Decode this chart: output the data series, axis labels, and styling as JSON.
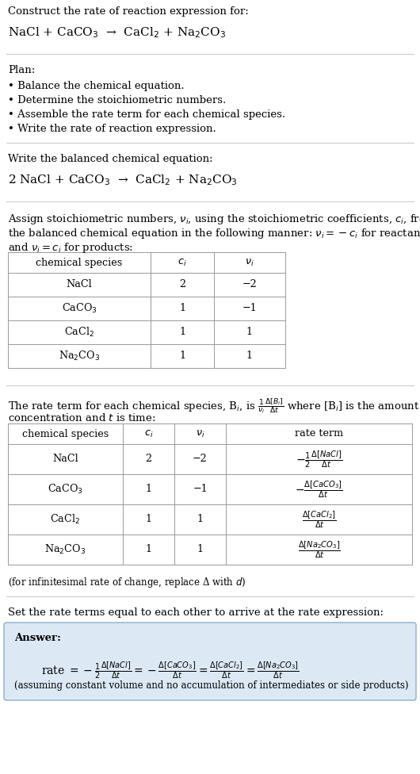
{
  "title_line1": "Construct the rate of reaction expression for:",
  "reaction_unbalanced": "NaCl + CaCO$_3$  →  CaCl$_2$ + Na$_2$CO$_3$",
  "plan_header": "Plan:",
  "plan_items": [
    "• Balance the chemical equation.",
    "• Determine the stoichiometric numbers.",
    "• Assemble the rate term for each chemical species.",
    "• Write the rate of reaction expression."
  ],
  "balanced_header": "Write the balanced chemical equation:",
  "reaction_balanced": "2 NaCl + CaCO$_3$  →  CaCl$_2$ + Na$_2$CO$_3$",
  "stoich_intro_1": "Assign stoichiometric numbers, $\\nu_i$, using the stoichiometric coefficients, $c_i$, from",
  "stoich_intro_2": "the balanced chemical equation in the following manner: $\\nu_i = -c_i$ for reactants",
  "stoich_intro_3": "and $\\nu_i = c_i$ for products:",
  "table1_headers": [
    "chemical species",
    "$c_i$",
    "$\\nu_i$"
  ],
  "table1_rows": [
    [
      "NaCl",
      "2",
      "−2"
    ],
    [
      "CaCO$_3$",
      "1",
      "−1"
    ],
    [
      "CaCl$_2$",
      "1",
      "1"
    ],
    [
      "Na$_2$CO$_3$",
      "1",
      "1"
    ]
  ],
  "rate_intro_1": "The rate term for each chemical species, B$_i$, is $\\frac{1}{\\nu_i}\\frac{\\Delta[B_i]}{\\Delta t}$ where [B$_i$] is the amount",
  "rate_intro_2": "concentration and $t$ is time:",
  "table2_headers": [
    "chemical species",
    "$c_i$",
    "$\\nu_i$",
    "rate term"
  ],
  "table2_rows": [
    [
      "NaCl",
      "2",
      "−2",
      "$-\\frac{1}{2}\\frac{\\Delta[NaCl]}{\\Delta t}$"
    ],
    [
      "CaCO$_3$",
      "1",
      "−1",
      "$-\\frac{\\Delta[CaCO_3]}{\\Delta t}$"
    ],
    [
      "CaCl$_2$",
      "1",
      "1",
      "$\\frac{\\Delta[CaCl_2]}{\\Delta t}$"
    ],
    [
      "Na$_2$CO$_3$",
      "1",
      "1",
      "$\\frac{\\Delta[Na_2CO_3]}{\\Delta t}$"
    ]
  ],
  "infinitesimal_note": "(for infinitesimal rate of change, replace Δ with $d$)",
  "set_equal_text": "Set the rate terms equal to each other to arrive at the rate expression:",
  "answer_label": "Answer:",
  "answer_eq": "rate $= -\\frac{1}{2}\\frac{\\Delta[NaCl]}{\\Delta t} = -\\frac{\\Delta[CaCO_3]}{\\Delta t} = \\frac{\\Delta[CaCl_2]}{\\Delta t} = \\frac{\\Delta[Na_2CO_3]}{\\Delta t}$",
  "answer_note": "(assuming constant volume and no accumulation of intermediates or side products)",
  "bg_color": "#ffffff",
  "answer_box_color": "#dce9f5",
  "table_line_color": "#999999",
  "text_color": "#000000",
  "separator_color": "#cccccc"
}
